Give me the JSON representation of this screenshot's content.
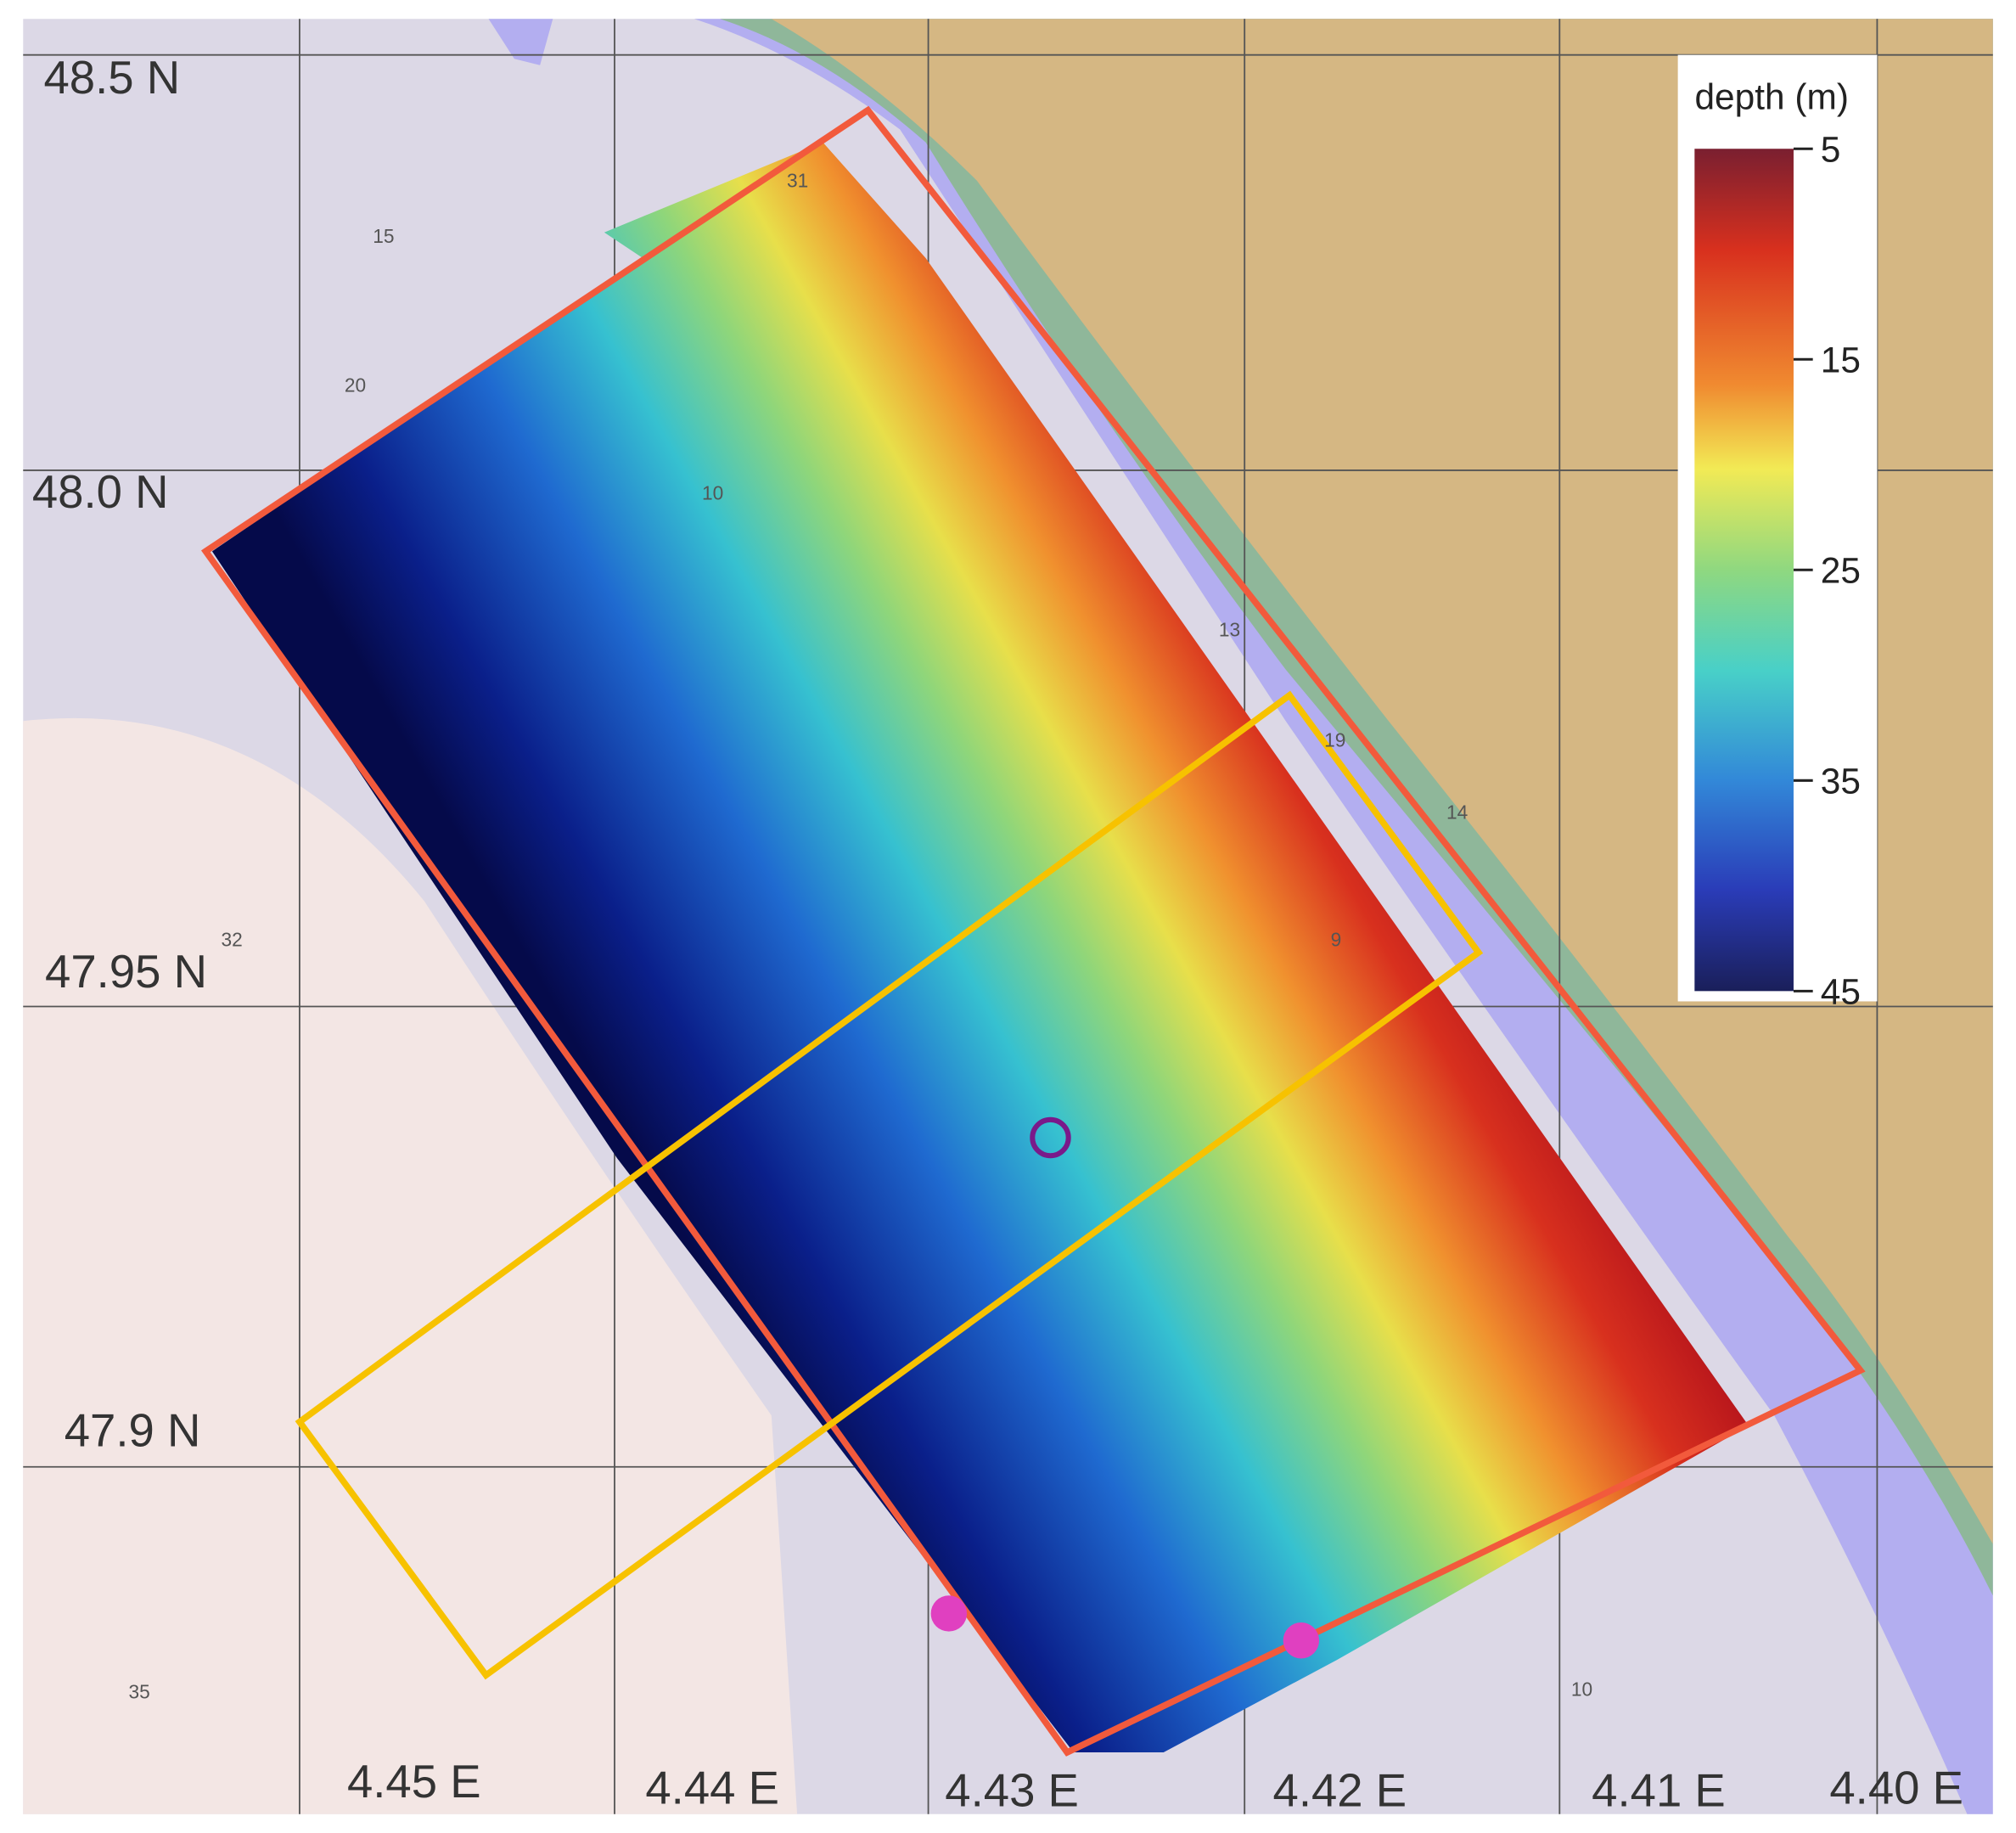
{
  "map": {
    "lat_labels": [
      "48.5 N",
      "48.0 N",
      "47.95 N",
      "47.9 N"
    ],
    "lon_labels": [
      "4.45 E",
      "4.44 E",
      "4.43 E",
      "4.42 E",
      "4.41 E",
      "4.40 E"
    ],
    "soundings": [
      "15",
      "20",
      "10",
      "13",
      "19",
      "14",
      "9",
      "31",
      "32",
      "35",
      "10"
    ],
    "colorbar": {
      "title": "depth (m)",
      "ticks": [
        5,
        15,
        25,
        35,
        45
      ]
    }
  }
}
